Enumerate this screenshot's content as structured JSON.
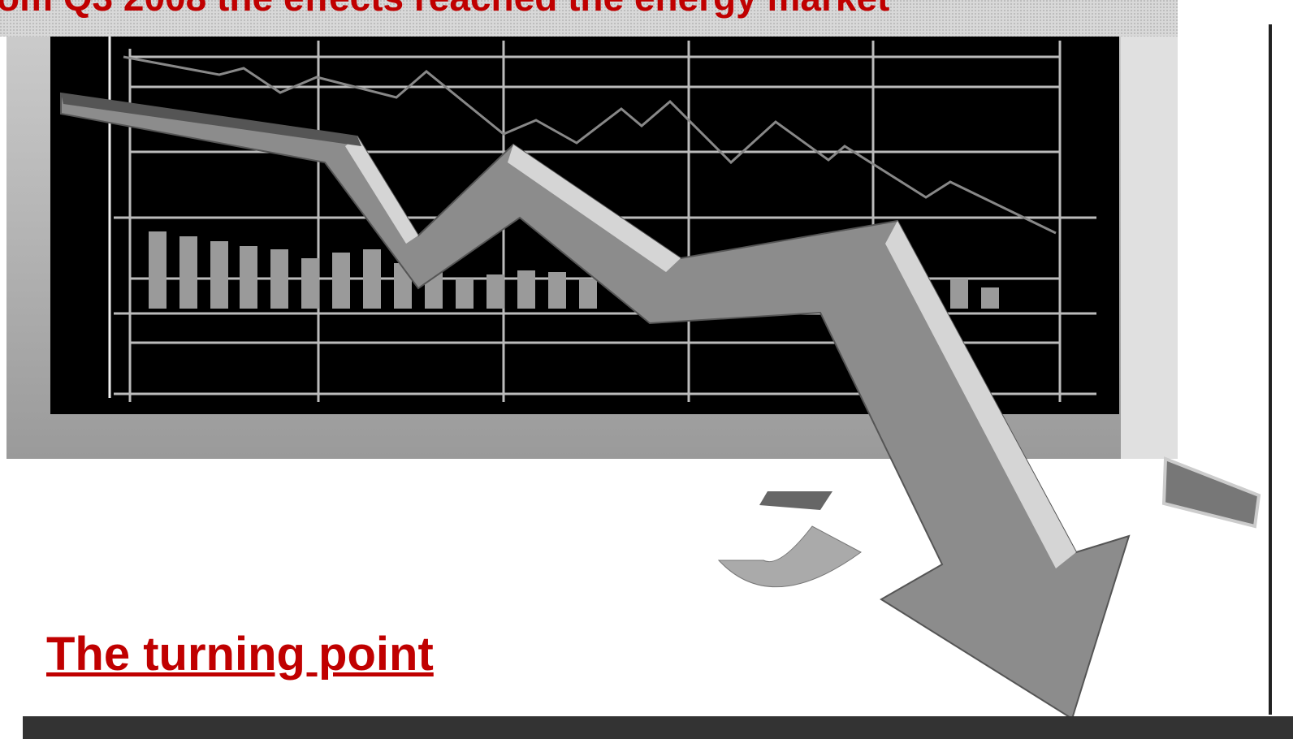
{
  "header": {
    "title": "om Q3 2008 the effects reached the energy market"
  },
  "slide": {
    "heading": "The turning point"
  }
}
